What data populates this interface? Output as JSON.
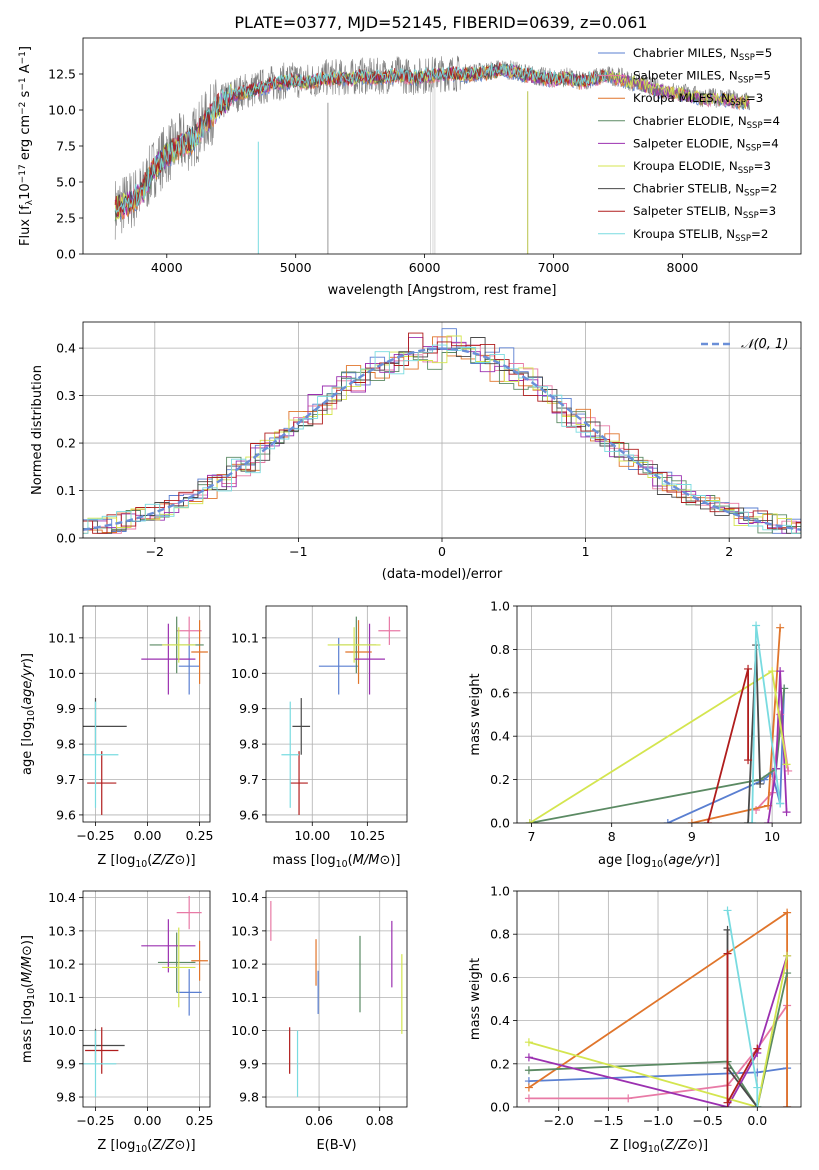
{
  "figure_title": "PLATE=0377, MJD=52145, FIBERID=0639, z=0.061",
  "colors": {
    "Chabrier MILES": "#5a7fd1",
    "Salpeter MILES": "#e87aa6",
    "Kroupa MILES": "#e0752b",
    "Chabrier ELODIE": "#5b8a63",
    "Salpeter ELODIE": "#9b30b0",
    "Kroupa ELODIE": "#d4e54f",
    "Chabrier STELIB": "#4a4a4a",
    "Salpeter STELIB": "#b01d1d",
    "Kroupa STELIB": "#79dbe0",
    "data": "#7f7f7f",
    "normal": "#6a8fd8"
  },
  "chart_data": [
    {
      "type": "line",
      "id": "spectrum",
      "xlabel": "wavelength [Angstrom, rest frame]",
      "ylabel_parts": [
        "Flux [f",
        "λ",
        "10",
        "−17",
        " erg cm",
        "−2",
        " s",
        "−1",
        " A",
        "−1",
        "]"
      ],
      "xlim": [
        3350,
        8920
      ],
      "ylim": [
        0,
        15
      ],
      "xticks": [
        4000,
        5000,
        6000,
        7000,
        8000
      ],
      "yticks": [
        0.0,
        2.5,
        5.0,
        7.5,
        10.0,
        12.5
      ],
      "grid": false,
      "legend_position": "upper right",
      "series": [
        {
          "name": "Chabrier MILES",
          "nssp": 5
        },
        {
          "name": "Salpeter MILES",
          "nssp": 5
        },
        {
          "name": "Kroupa MILES",
          "nssp": 3
        },
        {
          "name": "Chabrier ELODIE",
          "nssp": 4
        },
        {
          "name": "Salpeter ELODIE",
          "nssp": 4
        },
        {
          "name": "Kroupa ELODIE",
          "nssp": 3
        },
        {
          "name": "Chabrier STELIB",
          "nssp": 2
        },
        {
          "name": "Salpeter STELIB",
          "nssp": 3
        },
        {
          "name": "Kroupa STELIB",
          "nssp": 2
        }
      ],
      "data_envelope": {
        "x": [
          3600,
          3700,
          3800,
          3900,
          4000,
          4100,
          4200,
          4300,
          4400,
          4500,
          4600,
          4700,
          4800,
          4900,
          5000,
          5100,
          5200,
          5300,
          5400,
          5500,
          5600,
          5700,
          5800,
          5900,
          6000,
          6100,
          6200,
          6300,
          6400,
          6500,
          6600,
          6700,
          6800,
          6900,
          7000,
          7100,
          7200,
          7300,
          7400,
          7500,
          7600,
          7700,
          7800,
          7900,
          8000,
          8100,
          8200,
          8300,
          8400,
          8500
        ],
        "y": [
          3.2,
          3.6,
          4.2,
          6.0,
          7.0,
          7.6,
          8.0,
          9.2,
          10.3,
          11.0,
          11.3,
          11.5,
          11.8,
          12.0,
          12.1,
          12.0,
          12.2,
          12.3,
          12.2,
          12.4,
          12.3,
          12.4,
          12.5,
          12.3,
          12.4,
          12.5,
          12.6,
          12.5,
          12.6,
          12.7,
          12.9,
          12.7,
          12.5,
          12.3,
          12.2,
          12.3,
          12.0,
          12.2,
          12.4,
          12.3,
          12.0,
          11.8,
          11.5,
          11.3,
          11.2,
          11.0,
          10.8,
          10.9,
          10.7,
          10.6
        ]
      }
    },
    {
      "type": "histogram",
      "id": "residuals",
      "xlabel": "(data-model)/error",
      "ylabel": "Normed distribution",
      "xlim": [
        -2.5,
        2.5
      ],
      "ylim": [
        0,
        0.455
      ],
      "xticks": [
        -2,
        -1,
        0,
        1,
        2
      ],
      "yticks": [
        0.0,
        0.1,
        0.2,
        0.3,
        0.4
      ],
      "grid": true,
      "legend": "𝒩(0, 1)",
      "legend_position": "upper right",
      "bin_width": 0.1
    },
    {
      "type": "scatter",
      "id": "age_vs_Z",
      "xlabel": "Z [log10(Z/Z⊙)]",
      "ylabel": "age  [log10(age/yr)]",
      "xlim": [
        -0.31,
        0.3
      ],
      "ylim": [
        9.58,
        10.19
      ],
      "xticks": [
        -0.25,
        0.0,
        0.25
      ],
      "yticks": [
        9.6,
        9.7,
        9.8,
        9.9,
        10.0,
        10.1
      ],
      "grid": true,
      "points": [
        {
          "name": "Chabrier MILES",
          "x": 0.2,
          "xerr": 0.05,
          "y": 10.02,
          "yerr": 0.08
        },
        {
          "name": "Salpeter MILES",
          "x": 0.2,
          "xerr": 0.06,
          "y": 10.12,
          "yerr": 0.04
        },
        {
          "name": "Kroupa MILES",
          "x": 0.25,
          "xerr": 0.04,
          "y": 10.06,
          "yerr": 0.09
        },
        {
          "name": "Chabrier ELODIE",
          "x": 0.14,
          "xerr": 0.13,
          "y": 10.08,
          "yerr": 0.08
        },
        {
          "name": "Salpeter ELODIE",
          "x": 0.1,
          "xerr": 0.13,
          "y": 10.04,
          "yerr": 0.1
        },
        {
          "name": "Kroupa ELODIE",
          "x": 0.15,
          "xerr": 0.08,
          "y": 10.08,
          "yerr": 0.05
        },
        {
          "name": "Chabrier STELIB",
          "x": -0.25,
          "xerr": 0.15,
          "y": 9.85,
          "yerr": 0.08
        },
        {
          "name": "Salpeter STELIB",
          "x": -0.22,
          "xerr": 0.07,
          "y": 9.69,
          "yerr": 0.09
        },
        {
          "name": "Kroupa STELIB",
          "x": -0.25,
          "xerr": 0.11,
          "y": 9.77,
          "yerr": 0.15
        }
      ]
    },
    {
      "type": "scatter",
      "id": "age_vs_mass",
      "xlabel": "mass [log10(M/M⊙)]",
      "ylabel": "",
      "xlim": [
        9.79,
        10.43
      ],
      "ylim": [
        9.58,
        10.19
      ],
      "xticks": [
        10.0,
        10.25
      ],
      "yticks": [
        9.6,
        9.7,
        9.8,
        9.9,
        10.0,
        10.1
      ],
      "grid": true,
      "points": [
        {
          "name": "Chabrier MILES",
          "x": 10.12,
          "xerr": 0.09,
          "y": 10.02,
          "yerr": 0.08
        },
        {
          "name": "Salpeter MILES",
          "x": 10.35,
          "xerr": 0.05,
          "y": 10.12,
          "yerr": 0.04
        },
        {
          "name": "Kroupa MILES",
          "x": 10.21,
          "xerr": 0.06,
          "y": 10.06,
          "yerr": 0.09
        },
        {
          "name": "Chabrier ELODIE",
          "x": 10.2,
          "xerr": 0.09,
          "y": 10.08,
          "yerr": 0.08
        },
        {
          "name": "Salpeter ELODIE",
          "x": 10.26,
          "xerr": 0.07,
          "y": 10.04,
          "yerr": 0.1
        },
        {
          "name": "Kroupa ELODIE",
          "x": 10.19,
          "xerr": 0.12,
          "y": 10.08,
          "yerr": 0.05
        },
        {
          "name": "Chabrier STELIB",
          "x": 9.95,
          "xerr": 0.04,
          "y": 9.85,
          "yerr": 0.08
        },
        {
          "name": "Salpeter STELIB",
          "x": 9.94,
          "xerr": 0.04,
          "y": 9.69,
          "yerr": 0.09
        },
        {
          "name": "Kroupa STELIB",
          "x": 9.9,
          "xerr": 0.04,
          "y": 9.77,
          "yerr": 0.15
        }
      ]
    },
    {
      "type": "line",
      "id": "weight_vs_age",
      "xlabel": "age  [log10(age/yr)]",
      "ylabel": "mass weight",
      "xlim": [
        6.82,
        10.36
      ],
      "ylim": [
        0.0,
        1.0
      ],
      "xticks": [
        7,
        8,
        9,
        10
      ],
      "yticks": [
        0.0,
        0.2,
        0.4,
        0.6,
        0.8,
        1.0
      ],
      "grid": true,
      "series": [
        {
          "name": "Chabrier MILES",
          "x": [
            8.7,
            9.9,
            10.0,
            10.1,
            10.15
          ],
          "y": [
            0.0,
            0.2,
            0.23,
            0.09,
            0.62
          ]
        },
        {
          "name": "Salpeter MILES",
          "x": [
            9.8,
            10.0,
            10.1,
            10.2
          ],
          "y": [
            0.06,
            0.14,
            0.5,
            0.24
          ]
        },
        {
          "name": "Kroupa MILES",
          "x": [
            9.0,
            9.95,
            10.1
          ],
          "y": [
            0.0,
            0.08,
            0.9
          ]
        },
        {
          "name": "Chabrier ELODIE",
          "x": [
            6.98,
            9.85,
            10.05,
            10.15
          ],
          "y": [
            0.0,
            0.2,
            0.25,
            0.62
          ]
        },
        {
          "name": "Salpeter ELODIE",
          "x": [
            9.95,
            10.05,
            10.1,
            10.18
          ],
          "y": [
            0.0,
            0.25,
            0.7,
            0.05
          ]
        },
        {
          "name": "Kroupa ELODIE",
          "x": [
            6.98,
            10.0,
            10.18
          ],
          "y": [
            0.0,
            0.7,
            0.27
          ]
        },
        {
          "name": "Chabrier STELIB",
          "x": [
            9.7,
            9.8,
            9.85
          ],
          "y": [
            0.0,
            0.82,
            0.18
          ]
        },
        {
          "name": "Salpeter STELIB",
          "x": [
            9.2,
            9.7,
            9.7
          ],
          "y": [
            0.0,
            0.71,
            0.29
          ]
        },
        {
          "name": "Kroupa STELIB",
          "x": [
            9.75,
            9.8,
            10.1
          ],
          "y": [
            0.0,
            0.91,
            0.09
          ]
        }
      ]
    },
    {
      "type": "scatter",
      "id": "mass_vs_Z",
      "xlabel": "Z [log10(Z/Z⊙)]",
      "ylabel": "mass [log10(M/M⊙)]",
      "xlim": [
        -0.31,
        0.3
      ],
      "ylim": [
        9.77,
        10.42
      ],
      "xticks": [
        -0.25,
        0.0,
        0.25
      ],
      "yticks": [
        9.8,
        9.9,
        10.0,
        10.1,
        10.2,
        10.3,
        10.4
      ],
      "grid": true,
      "points": [
        {
          "name": "Chabrier MILES",
          "x": 0.2,
          "xerr": 0.06,
          "y": 10.115,
          "yerr": 0.07
        },
        {
          "name": "Salpeter MILES",
          "x": 0.2,
          "xerr": 0.06,
          "y": 10.355,
          "yerr": 0.05
        },
        {
          "name": "Kroupa MILES",
          "x": 0.25,
          "xerr": 0.04,
          "y": 10.21,
          "yerr": 0.06
        },
        {
          "name": "Chabrier ELODIE",
          "x": 0.14,
          "xerr": 0.09,
          "y": 10.205,
          "yerr": 0.09
        },
        {
          "name": "Salpeter ELODIE",
          "x": 0.1,
          "xerr": 0.13,
          "y": 10.255,
          "yerr": 0.08
        },
        {
          "name": "Kroupa ELODIE",
          "x": 0.15,
          "xerr": 0.08,
          "y": 10.19,
          "yerr": 0.12
        },
        {
          "name": "Chabrier STELIB",
          "x": -0.25,
          "xerr": 0.14,
          "y": 9.955,
          "yerr": 0.05
        },
        {
          "name": "Salpeter STELIB",
          "x": -0.22,
          "xerr": 0.08,
          "y": 9.94,
          "yerr": 0.07
        },
        {
          "name": "Kroupa STELIB",
          "x": -0.25,
          "xerr": 0.1,
          "y": 9.9,
          "yerr": 0.1
        }
      ]
    },
    {
      "type": "scatter",
      "id": "mass_vs_ebv",
      "xlabel": "E(B-V)",
      "ylabel": "",
      "xlim": [
        0.0425,
        0.089
      ],
      "ylim": [
        9.77,
        10.42
      ],
      "xticks": [
        0.06,
        0.08
      ],
      "yticks": [
        9.8,
        9.9,
        10.0,
        10.1,
        10.2,
        10.3,
        10.4
      ],
      "grid": true,
      "points": [
        {
          "name": "Chabrier MILES",
          "x": 0.0597,
          "y": 10.115,
          "yerr": 0.065
        },
        {
          "name": "Salpeter MILES",
          "x": 0.0441,
          "y": 10.33,
          "yerr": 0.06
        },
        {
          "name": "Kroupa MILES",
          "x": 0.059,
          "y": 10.205,
          "yerr": 0.07
        },
        {
          "name": "Chabrier ELODIE",
          "x": 0.0735,
          "y": 10.17,
          "yerr": 0.115
        },
        {
          "name": "Salpeter ELODIE",
          "x": 0.084,
          "y": 10.23,
          "yerr": 0.1
        },
        {
          "name": "Kroupa ELODIE",
          "x": 0.0873,
          "y": 10.11,
          "yerr": 0.12
        },
        {
          "name": "Salpeter STELIB",
          "x": 0.0503,
          "y": 9.94,
          "yerr": 0.07
        },
        {
          "name": "Kroupa STELIB",
          "x": 0.0529,
          "y": 9.9,
          "yerr": 0.1
        }
      ]
    },
    {
      "type": "line",
      "id": "weight_vs_Z",
      "xlabel": "Z [log10(Z/Z⊙)]",
      "ylabel": "mass weight",
      "xlim": [
        -2.42,
        0.44
      ],
      "ylim": [
        0.0,
        1.0
      ],
      "xticks": [
        -2.0,
        -1.5,
        -1.0,
        -0.5,
        0.0
      ],
      "yticks": [
        0.0,
        0.2,
        0.4,
        0.6,
        0.8,
        1.0
      ],
      "grid": true,
      "series": [
        {
          "name": "Chabrier MILES",
          "x": [
            -2.3,
            0.0,
            0.3,
            0.3
          ],
          "y": [
            0.12,
            0.16,
            0.18,
            0.0
          ]
        },
        {
          "name": "Salpeter MILES",
          "x": [
            -2.3,
            -1.3,
            -0.3,
            0.0,
            0.3,
            0.3
          ],
          "y": [
            0.04,
            0.04,
            0.1,
            0.27,
            0.47,
            0.0
          ]
        },
        {
          "name": "Kroupa MILES",
          "x": [
            -2.3,
            0.3,
            0.3
          ],
          "y": [
            0.09,
            0.9,
            0.0
          ]
        },
        {
          "name": "Chabrier ELODIE",
          "x": [
            -2.3,
            -0.3,
            0.0,
            0.3
          ],
          "y": [
            0.17,
            0.21,
            0.0,
            0.62
          ]
        },
        {
          "name": "Salpeter ELODIE",
          "x": [
            -2.3,
            -0.3,
            0.0,
            0.3
          ],
          "y": [
            0.23,
            0.0,
            0.25,
            0.7
          ]
        },
        {
          "name": "Kroupa ELODIE",
          "x": [
            -2.3,
            0.0,
            0.3
          ],
          "y": [
            0.3,
            0.0,
            0.7
          ]
        },
        {
          "name": "Chabrier STELIB",
          "x": [
            -0.3,
            -0.3,
            0.0
          ],
          "y": [
            0.82,
            0.18,
            0.0
          ]
        },
        {
          "name": "Salpeter STELIB",
          "x": [
            -0.3,
            -0.3,
            0.0
          ],
          "y": [
            0.71,
            0.02,
            0.27
          ]
        },
        {
          "name": "Kroupa STELIB",
          "x": [
            -0.3,
            0.0,
            0.0
          ],
          "y": [
            0.91,
            0.09,
            0.0
          ]
        }
      ]
    }
  ]
}
